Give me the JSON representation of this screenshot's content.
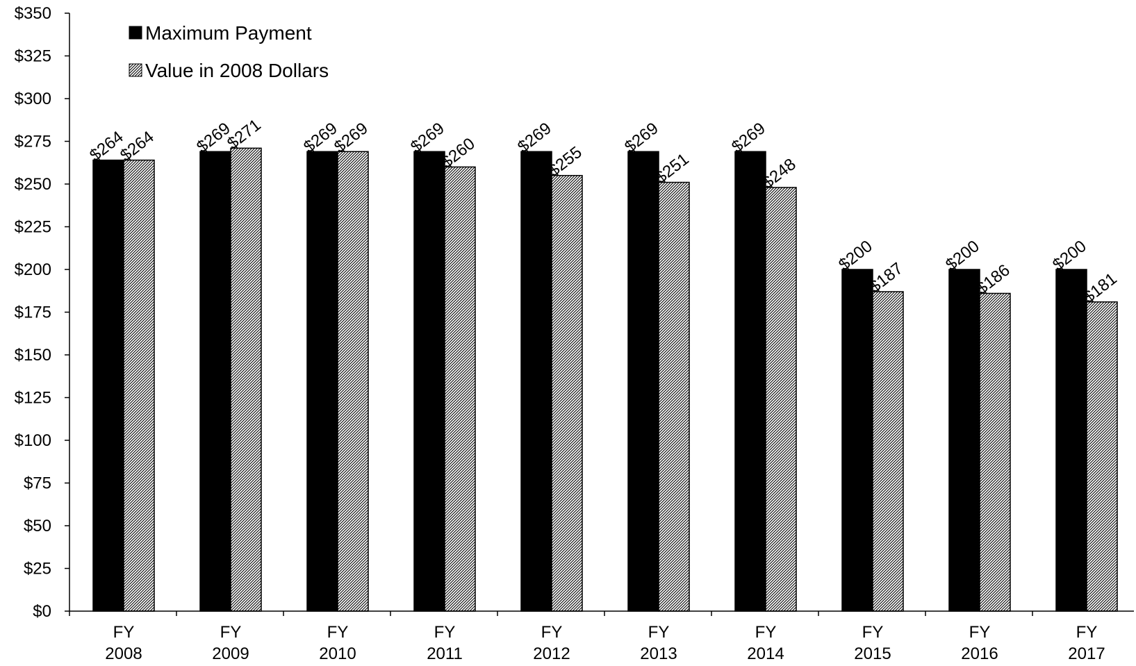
{
  "chart_data": {
    "type": "bar",
    "title": "",
    "xlabel": "",
    "ylabel": "",
    "ylim": [
      0,
      350
    ],
    "ytick_step": 25,
    "ytick_prefix": "$",
    "grid": false,
    "legend_placement": "top-left",
    "categories": [
      [
        "FY",
        "2008"
      ],
      [
        "FY",
        "2009"
      ],
      [
        "FY",
        "2010"
      ],
      [
        "FY",
        "2011"
      ],
      [
        "FY",
        "2012"
      ],
      [
        "FY",
        "2013"
      ],
      [
        "FY",
        "2014"
      ],
      [
        "FY",
        "2015"
      ],
      [
        "FY",
        "2016"
      ],
      [
        "FY",
        "2017"
      ]
    ],
    "series": [
      {
        "name": "Maximum Payment",
        "fill": "solid-black",
        "values": [
          264,
          269,
          269,
          269,
          269,
          269,
          269,
          200,
          200,
          200
        ],
        "labels": [
          "$264",
          "$269",
          "$269",
          "$269",
          "$269",
          "$269",
          "$269",
          "$200",
          "$200",
          "$200"
        ]
      },
      {
        "name": "Value in 2008 Dollars",
        "fill": "diagonal-hatch",
        "values": [
          264,
          271,
          269,
          260,
          255,
          251,
          248,
          187,
          186,
          181
        ],
        "labels": [
          "$264",
          "$271",
          "$269",
          "$260",
          "$255",
          "$251",
          "$248",
          "$187",
          "$186",
          "$181"
        ]
      }
    ],
    "colors": {
      "bar_solid": "#000000",
      "hatch": "#000000",
      "axis": "#000000",
      "background": "#ffffff"
    }
  }
}
